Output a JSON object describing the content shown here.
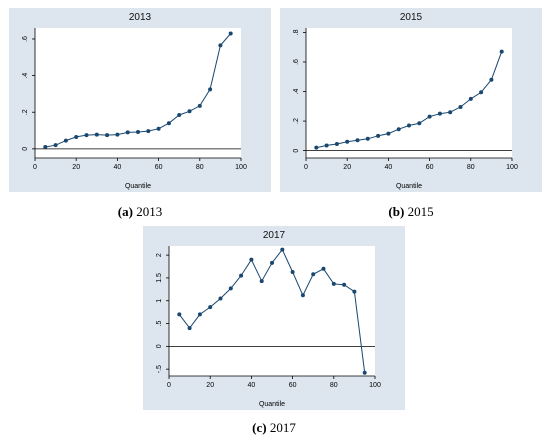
{
  "chart_data": [
    {
      "type": "line",
      "title": "2013",
      "xlabel": "Quantile",
      "ylabel": "",
      "xlim": [
        0,
        100
      ],
      "ylim": [
        -0.05,
        0.66
      ],
      "xticks": [
        0,
        20,
        40,
        60,
        80,
        100
      ],
      "xtick_labels": [
        "0",
        "20",
        "40",
        "60",
        "80",
        "100"
      ],
      "yticks": [
        0,
        0.2,
        0.4,
        0.6
      ],
      "ytick_labels": [
        "0",
        ".2",
        ".4",
        ".6"
      ],
      "ref_line_y": 0,
      "grid": false,
      "series": [
        {
          "x": [
            5,
            10,
            15,
            20,
            25,
            30,
            35,
            40,
            45,
            50,
            55,
            60,
            65,
            70,
            75,
            80,
            85,
            90,
            95
          ],
          "y": [
            0.01,
            0.02,
            0.045,
            0.065,
            0.075,
            0.078,
            0.075,
            0.078,
            0.09,
            0.092,
            0.097,
            0.11,
            0.14,
            0.185,
            0.205,
            0.235,
            0.325,
            0.565,
            0.63
          ]
        }
      ],
      "caption_label": "(a)",
      "caption_text": " 2013"
    },
    {
      "type": "line",
      "title": "2015",
      "xlabel": "Quantile",
      "ylabel": "",
      "xlim": [
        0,
        100
      ],
      "ylim": [
        -0.05,
        0.83
      ],
      "xticks": [
        0,
        20,
        40,
        60,
        80,
        100
      ],
      "xtick_labels": [
        "0",
        "20",
        "40",
        "60",
        "80",
        "100"
      ],
      "yticks": [
        0,
        0.2,
        0.4,
        0.6,
        0.8
      ],
      "ytick_labels": [
        "0",
        ".2",
        ".4",
        ".6",
        ".8"
      ],
      "ref_line_y": 0,
      "grid": false,
      "series": [
        {
          "x": [
            5,
            10,
            15,
            20,
            25,
            30,
            35,
            40,
            45,
            50,
            55,
            60,
            65,
            70,
            75,
            80,
            85,
            90,
            95
          ],
          "y": [
            0.02,
            0.035,
            0.045,
            0.06,
            0.07,
            0.08,
            0.1,
            0.115,
            0.145,
            0.17,
            0.185,
            0.23,
            0.25,
            0.26,
            0.295,
            0.35,
            0.395,
            0.48,
            0.67
          ]
        }
      ],
      "caption_label": "(b)",
      "caption_text": " 2015"
    },
    {
      "type": "line",
      "title": "2017",
      "xlabel": "Quantile",
      "ylabel": "",
      "xlim": [
        0,
        100
      ],
      "ylim": [
        -0.65,
        2.2
      ],
      "xticks": [
        0,
        20,
        40,
        60,
        80,
        100
      ],
      "xtick_labels": [
        "0",
        "20",
        "40",
        "60",
        "80",
        "100"
      ],
      "yticks": [
        -0.5,
        0,
        0.5,
        1,
        1.5,
        2
      ],
      "ytick_labels": [
        "-.5",
        "0",
        ".5",
        "1",
        "1.5",
        "2"
      ],
      "ref_line_y": 0,
      "grid": false,
      "series": [
        {
          "x": [
            5,
            10,
            15,
            20,
            25,
            30,
            35,
            40,
            45,
            50,
            55,
            60,
            65,
            70,
            75,
            80,
            85,
            90,
            95
          ],
          "y": [
            0.7,
            0.4,
            0.7,
            0.86,
            1.05,
            1.27,
            1.55,
            1.9,
            1.43,
            1.83,
            2.12,
            1.63,
            1.12,
            1.58,
            1.7,
            1.37,
            1.35,
            1.2,
            -0.58
          ]
        }
      ],
      "caption_label": "(c)",
      "caption_text": " 2017"
    }
  ],
  "colors": {
    "panel_bg": "#dde6ee",
    "plot_bg": "#ffffff",
    "line": "#1a476f",
    "marker": "#1a476f",
    "ref_line": "#000000"
  }
}
